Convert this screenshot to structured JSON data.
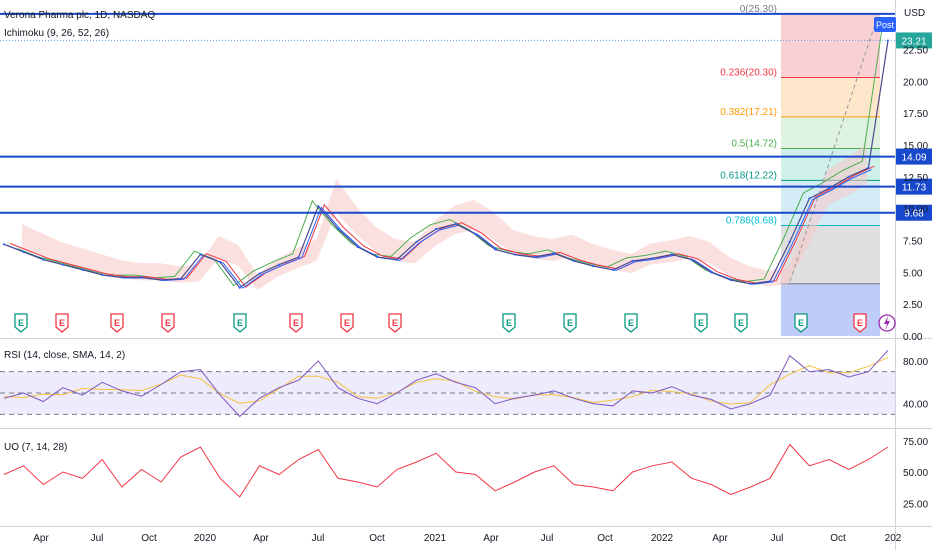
{
  "header": {
    "symbol_title": "Verona Pharma plc, 1D, NASDAQ",
    "indicator_ichimoku": "Ichimoku (9, 26, 52, 26)",
    "indicator_rsi": "RSI (14, close, SMA, 14, 2)",
    "indicator_uo": "UO (7, 14, 28)"
  },
  "axis": {
    "currency": "USD",
    "price_ticks": [
      "22.50",
      "20.00",
      "17.50",
      "15.00",
      "12.50",
      "10.00",
      "7.50",
      "5.00",
      "2.50",
      "0.00"
    ],
    "rsi_ticks": [
      "80.00",
      "40.00"
    ],
    "uo_ticks": [
      "75.00",
      "50.00",
      "25.00"
    ],
    "time_ticks": [
      "Apr",
      "Jul",
      "Oct",
      "2020",
      "Apr",
      "Jul",
      "Oct",
      "2021",
      "Apr",
      "Jul",
      "Oct",
      "2022",
      "Apr",
      "Jul",
      "Oct",
      "202"
    ]
  },
  "price_tags": [
    {
      "label": "23.21",
      "value": 23.21,
      "color": "#26a69a"
    },
    {
      "label": "14.09",
      "value": 14.09,
      "color": "#1848cc"
    },
    {
      "label": "11.73",
      "value": 11.73,
      "color": "#1848cc"
    },
    {
      "label": "9.68",
      "value": 9.68,
      "color": "#1848cc"
    }
  ],
  "post_badge": "Post",
  "horizontal_levels": [
    25.3,
    14.09,
    11.73,
    9.68
  ],
  "fibonacci": [
    {
      "label": "0(25.30)",
      "value": 25.3,
      "color": "#787b86"
    },
    {
      "label": "0.236(20.30)",
      "value": 20.3,
      "color": "#f23645"
    },
    {
      "label": "0.382(17.21)",
      "value": 17.21,
      "color": "#ff9800"
    },
    {
      "label": "0.5(14.72)",
      "value": 14.72,
      "color": "#4caf50"
    },
    {
      "label": "0.618(12.22)",
      "value": 12.22,
      "color": "#089981"
    },
    {
      "label": "0.786(8.68)",
      "value": 8.68,
      "color": "#00bcd4"
    },
    {
      "label": "",
      "value": 4.1,
      "color": "#787b86"
    }
  ],
  "events": [
    "E",
    "E",
    "E",
    "E",
    "E",
    "E",
    "E",
    "E",
    "E",
    "E",
    "E",
    "E",
    "E",
    "E",
    "E"
  ],
  "events_colors": [
    "#089981",
    "#f23645",
    "#f23645",
    "#f23645",
    "#089981",
    "#f23645",
    "#f23645",
    "#f23645",
    "#089981",
    "#089981",
    "#089981",
    "#089981",
    "#089981",
    "#089981",
    "#f23645"
  ],
  "lightning_icon": "lightning-icon",
  "chart_data": {
    "type": "line",
    "title": "Verona Pharma plc, 1D, NASDAQ",
    "ylim": [
      0,
      25.6
    ],
    "x_range": [
      "2019-03",
      "2022-12"
    ],
    "series": [
      {
        "name": "",
        "color": "#2962ff",
        "x": [
          "2019-03",
          "2019-04",
          "2019-05",
          "2019-06",
          "2019-07",
          "2019-08",
          "2019-09",
          "2019-10",
          "2019-11",
          "2019-12",
          "2020-01",
          "2020-02",
          "2020-03",
          "2020-04",
          "2020-05",
          "2020-06",
          "2020-07",
          "2020-08",
          "2020-09",
          "2020-10",
          "2020-11",
          "2020-12",
          "2021-01",
          "2021-02",
          "2021-03",
          "2021-04",
          "2021-05",
          "2021-06",
          "2021-07",
          "2021-08",
          "2021-09",
          "2021-10",
          "2021-11",
          "2021-12",
          "2022-01",
          "2022-02",
          "2022-03",
          "2022-04",
          "2022-05",
          "2022-06",
          "2022-07",
          "2022-08",
          "2022-09",
          "2022-10",
          "2022-11",
          "2022-12"
        ],
        "values": [
          7.2,
          6.6,
          6.0,
          5.6,
          5.2,
          4.8,
          4.6,
          4.6,
          4.4,
          4.5,
          6.4,
          5.8,
          3.8,
          4.9,
          5.6,
          6.2,
          10.2,
          8.4,
          7.0,
          6.2,
          6.0,
          7.4,
          8.4,
          8.8,
          8.0,
          6.8,
          6.4,
          6.2,
          6.5,
          5.9,
          5.5,
          5.2,
          5.9,
          6.1,
          6.4,
          6.0,
          5.0,
          4.4,
          4.1,
          4.3,
          7.4,
          10.8,
          11.6,
          12.5,
          13.2,
          23.2
        ]
      }
    ],
    "indicators": [
      {
        "name": "RSI (14, close, SMA, 14, 2)",
        "ylim": [
          20,
          95
        ],
        "bands": [
          70,
          50,
          30
        ],
        "values": [
          45,
          50,
          42,
          55,
          48,
          60,
          52,
          47,
          58,
          70,
          72,
          48,
          28,
          45,
          55,
          62,
          80,
          55,
          45,
          40,
          50,
          62,
          68,
          60,
          55,
          40,
          45,
          48,
          52,
          45,
          40,
          38,
          52,
          50,
          56,
          48,
          44,
          35,
          40,
          48,
          85,
          70,
          72,
          65,
          70,
          90
        ]
      },
      {
        "name": "UO (7, 14, 28)",
        "ylim": [
          10,
          82
        ],
        "values": [
          48,
          55,
          40,
          50,
          45,
          60,
          38,
          52,
          42,
          62,
          70,
          45,
          30,
          55,
          48,
          60,
          68,
          45,
          42,
          38,
          52,
          58,
          65,
          50,
          48,
          35,
          42,
          50,
          55,
          40,
          38,
          35,
          50,
          55,
          58,
          45,
          40,
          32,
          38,
          45,
          72,
          55,
          60,
          52,
          60,
          70
        ]
      }
    ]
  }
}
